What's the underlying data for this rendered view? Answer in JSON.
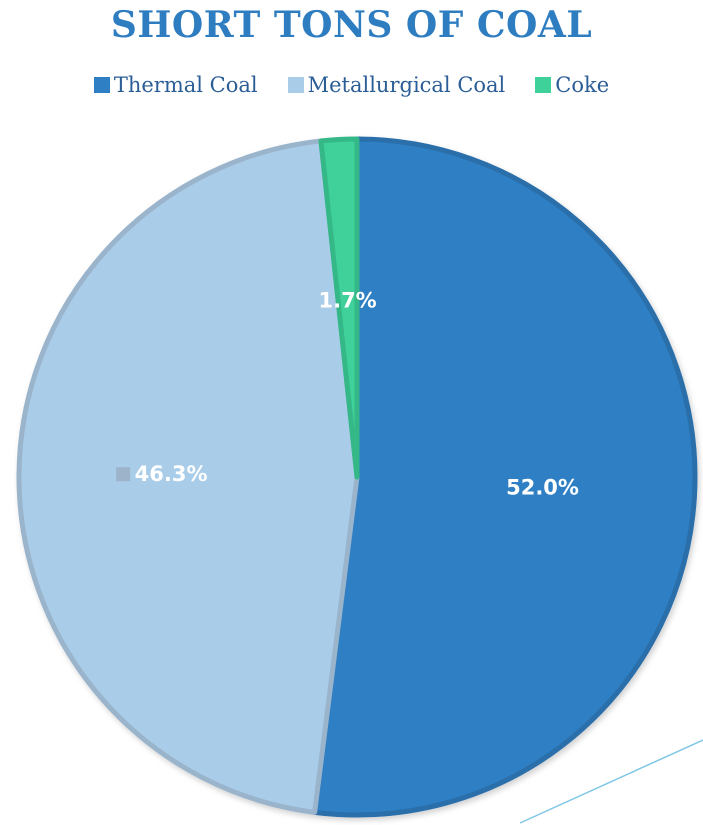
{
  "chart_data": {
    "type": "pie",
    "title": "SHORT TONS OF COAL",
    "legend_position": "top",
    "series": [
      {
        "name": "Thermal Coal",
        "value": 52.0,
        "label": "52.0%",
        "color": "#2e7fc3",
        "edge": "#2a6eaa"
      },
      {
        "name": "Metallurgical Coal",
        "value": 46.3,
        "label": "46.3%",
        "color": "#a9cde9",
        "edge": "#9ab4cc"
      },
      {
        "name": "Coke",
        "value": 1.7,
        "label": "1.7%",
        "color": "#3fd19a",
        "edge": "#35b887"
      }
    ]
  }
}
